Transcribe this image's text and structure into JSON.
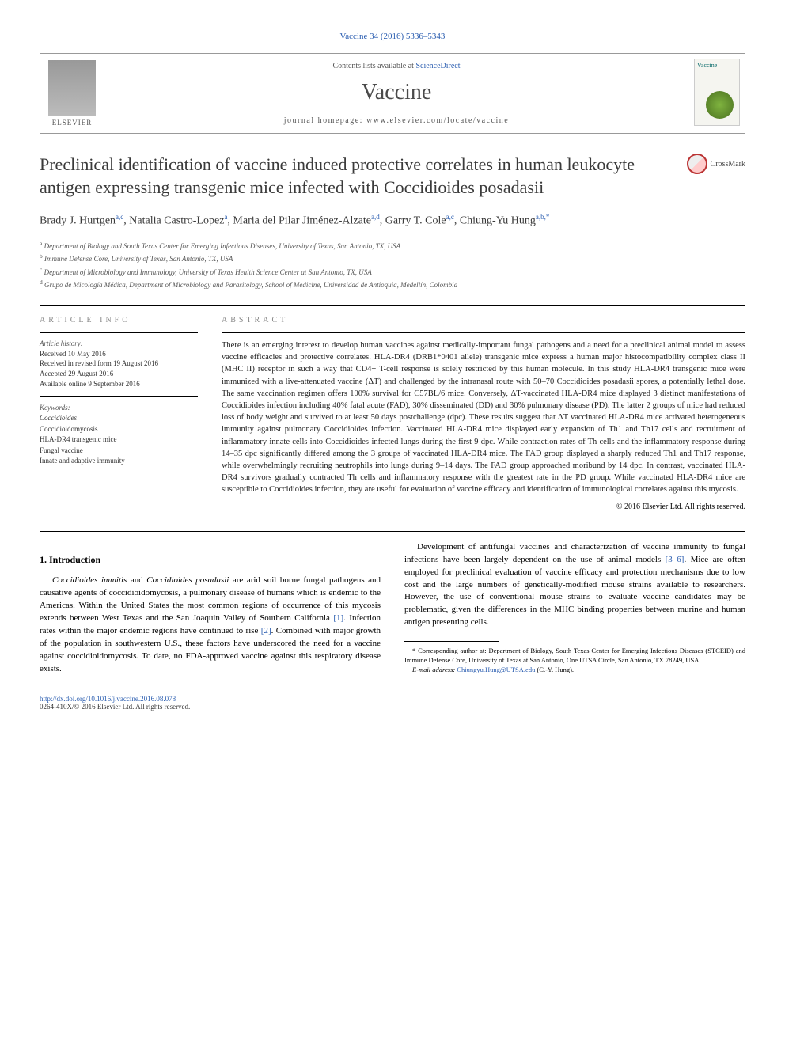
{
  "header": {
    "citation": "Vaccine 34 (2016) 5336–5343",
    "contents_prefix": "Contents lists available at ",
    "contents_link": "ScienceDirect",
    "journal_name": "Vaccine",
    "homepage_prefix": "journal homepage: ",
    "homepage_url": "www.elsevier.com/locate/vaccine",
    "publisher_logo": "ELSEVIER",
    "cover_label": "Vaccine"
  },
  "crossmark": "CrossMark",
  "title": "Preclinical identification of vaccine induced protective correlates in human leukocyte antigen expressing transgenic mice infected with Coccidioides posadasii",
  "authors": {
    "a1_name": "Brady J. Hurtgen",
    "a1_aff": "a,c",
    "a2_name": "Natalia Castro-Lopez",
    "a2_aff": "a",
    "a3_name": "Maria del Pilar Jiménez-Alzate",
    "a3_aff": "a,d",
    "a4_name": "Garry T. Cole",
    "a4_aff": "a,c",
    "a5_name": "Chiung-Yu Hung",
    "a5_aff": "a,b,",
    "a5_corr": "*"
  },
  "affiliations": {
    "a": "Department of Biology and South Texas Center for Emerging Infectious Diseases, University of Texas, San Antonio, TX, USA",
    "b": "Immune Defense Core, University of Texas, San Antonio, TX, USA",
    "c": "Department of Microbiology and Immunology, University of Texas Health Science Center at San Antonio, TX, USA",
    "d": "Grupo de Micología Médica, Department of Microbiology and Parasitology, School of Medicine, Universidad de Antioquia, Medellín, Colombia"
  },
  "article_info": {
    "heading": "ARTICLE INFO",
    "history_label": "Article history:",
    "received": "Received 10 May 2016",
    "revised": "Received in revised form 19 August 2016",
    "accepted": "Accepted 29 August 2016",
    "online": "Available online 9 September 2016",
    "keywords_label": "Keywords:",
    "kw1": "Coccidioides",
    "kw2": "Coccidioidomycosis",
    "kw3": "HLA-DR4 transgenic mice",
    "kw4": "Fungal vaccine",
    "kw5": "Innate and adaptive immunity"
  },
  "abstract": {
    "heading": "ABSTRACT",
    "text": "There is an emerging interest to develop human vaccines against medically-important fungal pathogens and a need for a preclinical animal model to assess vaccine efficacies and protective correlates. HLA-DR4 (DRB1*0401 allele) transgenic mice express a human major histocompatibility complex class II (MHC II) receptor in such a way that CD4+ T-cell response is solely restricted by this human molecule. In this study HLA-DR4 transgenic mice were immunized with a live-attenuated vaccine (ΔT) and challenged by the intranasal route with 50–70 Coccidioides posadasii spores, a potentially lethal dose. The same vaccination regimen offers 100% survival for C57BL/6 mice. Conversely, ΔT-vaccinated HLA-DR4 mice displayed 3 distinct manifestations of Coccidioides infection including 40% fatal acute (FAD), 30% disseminated (DD) and 30% pulmonary disease (PD). The latter 2 groups of mice had reduced loss of body weight and survived to at least 50 days postchallenge (dpc). These results suggest that ΔT vaccinated HLA-DR4 mice activated heterogeneous immunity against pulmonary Coccidioides infection. Vaccinated HLA-DR4 mice displayed early expansion of Th1 and Th17 cells and recruitment of inflammatory innate cells into Coccidioides-infected lungs during the first 9 dpc. While contraction rates of Th cells and the inflammatory response during 14–35 dpc significantly differed among the 3 groups of vaccinated HLA-DR4 mice. The FAD group displayed a sharply reduced Th1 and Th17 response, while overwhelmingly recruiting neutrophils into lungs during 9–14 days. The FAD group approached moribund by 14 dpc. In contrast, vaccinated HLA-DR4 survivors gradually contracted Th cells and inflammatory response with the greatest rate in the PD group. While vaccinated HLA-DR4 mice are susceptible to Coccidioides infection, they are useful for evaluation of vaccine efficacy and identification of immunological correlates against this mycosis.",
    "copyright": "© 2016 Elsevier Ltd. All rights reserved."
  },
  "intro": {
    "heading": "1. Introduction",
    "p1_a": "Coccidioides immitis",
    "p1_b": " and ",
    "p1_c": "Coccidioides posadasii",
    "p1_d": " are arid soil borne fungal pathogens and causative agents of coccidioidomycosis, a pulmonary disease of humans which is endemic to the Americas. Within the United States the most common regions of occurrence of this mycosis extends between West Texas and the San Joaquin Valley of Southern California ",
    "p1_ref1": "[1]",
    "p1_e": ". Infection rates within the major endemic regions have continued to rise ",
    "p1_ref2": "[2]",
    "p1_f": ". Combined with major growth of the population in southwestern U.S., these factors have underscored the need for a vaccine against coccidioidomycosis. To date, no FDA-approved vaccine against this respiratory disease exists.",
    "p2_a": "Development of antifungal vaccines and characterization of vaccine immunity to fungal infections have been largely dependent on the use of animal models ",
    "p2_ref1": "[3–6]",
    "p2_b": ". Mice are often employed for preclinical evaluation of vaccine efficacy and protection mechanisms due to low cost and the large numbers of genetically-modified mouse strains available to researchers. However, the use of conventional mouse strains to evaluate vaccine candidates may be problematic, given the differences in the MHC binding properties between murine and human antigen presenting cells."
  },
  "footnote": {
    "corr_label": "* Corresponding author at: Department of Biology, South Texas Center for Emerging Infectious Diseases (STCEID) and Immune Defense Core, University of Texas at San Antonio, One UTSA Circle, San Antonio, TX 78249, USA.",
    "email_label": "E-mail address: ",
    "email": "Chiungyu.Hung@UTSA.edu",
    "email_suffix": " (C.-Y. Hung)."
  },
  "footer": {
    "doi": "http://dx.doi.org/10.1016/j.vaccine.2016.08.078",
    "issn": "0264-410X/© 2016 Elsevier Ltd. All rights reserved."
  },
  "colors": {
    "link": "#2a5db0",
    "text": "#222222",
    "heading_gray": "#888888"
  }
}
